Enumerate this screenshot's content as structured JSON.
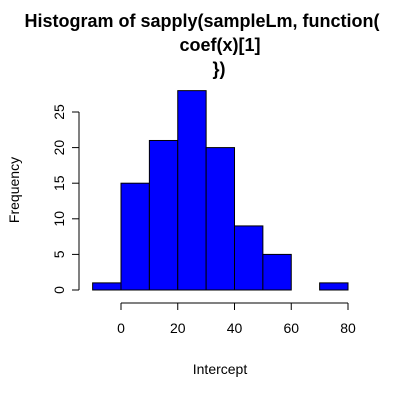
{
  "chart_data": {
    "type": "bar",
    "title_lines": [
      "Histogram of sapply(sampleLm, function(",
      "coef(x)[1]",
      "})"
    ],
    "xlabel": "Intercept",
    "ylabel": "Frequency",
    "bins": [
      {
        "from": -10,
        "to": 0,
        "count": 1
      },
      {
        "from": 0,
        "to": 10,
        "count": 15
      },
      {
        "from": 10,
        "to": 20,
        "count": 21
      },
      {
        "from": 20,
        "to": 30,
        "count": 28
      },
      {
        "from": 30,
        "to": 40,
        "count": 20
      },
      {
        "from": 40,
        "to": 50,
        "count": 9
      },
      {
        "from": 50,
        "to": 60,
        "count": 5
      },
      {
        "from": 60,
        "to": 70,
        "count": 0
      },
      {
        "from": 70,
        "to": 80,
        "count": 1
      }
    ],
    "xticks": [
      0,
      20,
      40,
      60,
      80
    ],
    "yticks": [
      0,
      5,
      10,
      15,
      20,
      25
    ],
    "xlim": [
      -10,
      80
    ],
    "ylim": [
      0,
      28
    ],
    "bar_color": "#0000ff",
    "border_color": "#000000",
    "grid": false,
    "legend": "none"
  }
}
